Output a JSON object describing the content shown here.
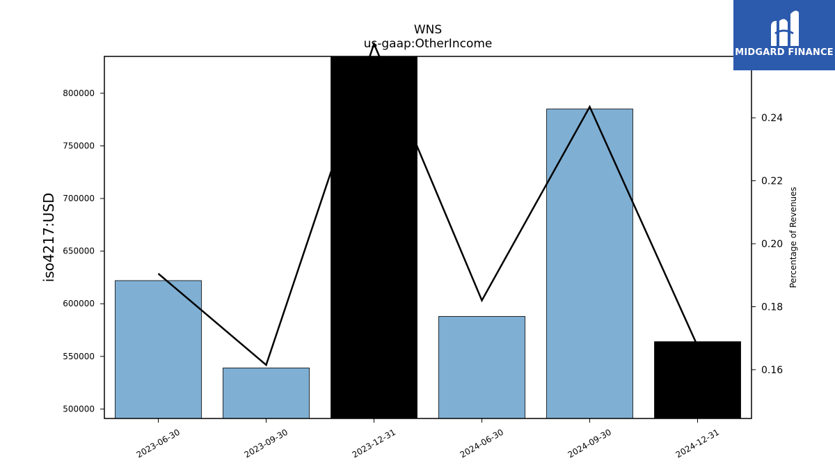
{
  "logo": {
    "text": "MIDGARD FINANCE",
    "icon": "midgard-logo-icon",
    "background": "#2c5aad"
  },
  "chart_data": {
    "type": "bar",
    "title": "WNS",
    "subtitle": "us-gaap:OtherIncome",
    "ylabel": "iso4217:USD",
    "y2label": "Percentage of Revenues",
    "categories": [
      "2023-06-30",
      "2023-09-30",
      "2023-12-31",
      "2024-06-30",
      "2024-09-30",
      "2024-12-31"
    ],
    "series": [
      {
        "values": [
          622000,
          539000,
          835000,
          588000,
          785000,
          564000
        ],
        "colors": [
          "#7fafd3",
          "#7fafd3",
          "#000000",
          "#7fafd3",
          "#7fafd3",
          "#000000"
        ]
      },
      {
        "type": "line",
        "axis": "right",
        "color": "#000000",
        "values": [
          0.1905,
          0.1615,
          0.2635,
          0.182,
          0.2435,
          0.1675
        ]
      }
    ],
    "ylim": [
      491000,
      835000
    ],
    "yticks": [
      500000,
      550000,
      600000,
      650000,
      700000,
      750000,
      800000
    ],
    "y2lim": [
      0.1445,
      0.2595
    ],
    "y2ticks": [
      0.16,
      0.18,
      0.2,
      0.22,
      0.24
    ],
    "y2tick_labels": [
      "0.16",
      "0.18",
      "0.20",
      "0.22",
      "0.24"
    ],
    "grid": false,
    "legend": "none"
  }
}
